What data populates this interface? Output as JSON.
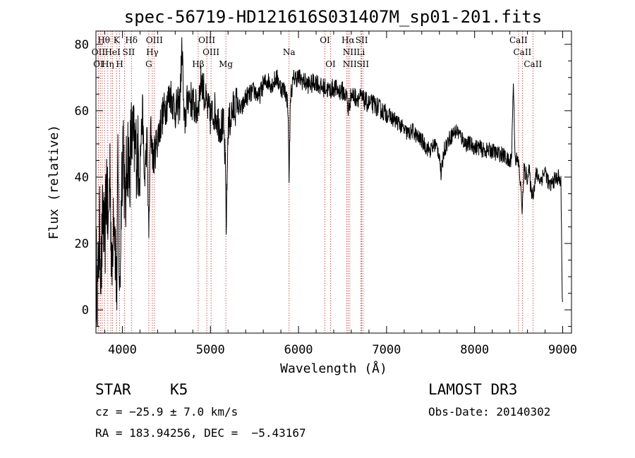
{
  "chart_data": {
    "type": "line",
    "title": "spec-56719-HD121616S031407M_sp01-201.fits",
    "xlabel": "Wavelength (Å)",
    "ylabel": "Flux (relative)",
    "xlim": [
      3700,
      9100
    ],
    "ylim": [
      -7,
      84
    ],
    "xticks": [
      4000,
      5000,
      6000,
      7000,
      8000,
      9000
    ],
    "yticks": [
      0,
      20,
      40,
      60,
      80
    ],
    "grid": false,
    "line_color": "#000000",
    "marker_color": "#c03030",
    "anchors": [
      [
        3700,
        15
      ],
      [
        3720,
        5
      ],
      [
        3740,
        25
      ],
      [
        3760,
        12
      ],
      [
        3780,
        30
      ],
      [
        3800,
        18
      ],
      [
        3820,
        40
      ],
      [
        3840,
        22
      ],
      [
        3860,
        45
      ],
      [
        3880,
        8
      ],
      [
        3900,
        35
      ],
      [
        3920,
        20
      ],
      [
        3935,
        4
      ],
      [
        3950,
        42
      ],
      [
        3970,
        2
      ],
      [
        3990,
        38
      ],
      [
        4010,
        55
      ],
      [
        4030,
        28
      ],
      [
        4060,
        50
      ],
      [
        4080,
        40
      ],
      [
        4100,
        52
      ],
      [
        4150,
        48
      ],
      [
        4200,
        45
      ],
      [
        4230,
        60
      ],
      [
        4250,
        38
      ],
      [
        4280,
        52
      ],
      [
        4300,
        22
      ],
      [
        4320,
        55
      ],
      [
        4350,
        45
      ],
      [
        4400,
        52
      ],
      [
        4450,
        58
      ],
      [
        4500,
        62
      ],
      [
        4550,
        65
      ],
      [
        4600,
        60
      ],
      [
        4650,
        62
      ],
      [
        4680,
        80
      ],
      [
        4700,
        55
      ],
      [
        4750,
        65
      ],
      [
        4800,
        62
      ],
      [
        4850,
        60
      ],
      [
        4900,
        70
      ],
      [
        4950,
        62
      ],
      [
        5000,
        58
      ],
      [
        5050,
        60
      ],
      [
        5100,
        56
      ],
      [
        5150,
        55
      ],
      [
        5170,
        42
      ],
      [
        5180,
        25
      ],
      [
        5200,
        55
      ],
      [
        5250,
        60
      ],
      [
        5300,
        62
      ],
      [
        5350,
        60
      ],
      [
        5400,
        64
      ],
      [
        5450,
        65
      ],
      [
        5500,
        66
      ],
      [
        5550,
        64
      ],
      [
        5600,
        68
      ],
      [
        5650,
        69
      ],
      [
        5700,
        68
      ],
      [
        5750,
        70
      ],
      [
        5800,
        67
      ],
      [
        5850,
        66
      ],
      [
        5880,
        62
      ],
      [
        5893,
        40
      ],
      [
        5910,
        65
      ],
      [
        5950,
        70
      ],
      [
        6000,
        70
      ],
      [
        6050,
        69
      ],
      [
        6100,
        68
      ],
      [
        6150,
        68
      ],
      [
        6200,
        69
      ],
      [
        6250,
        67
      ],
      [
        6300,
        67
      ],
      [
        6350,
        66
      ],
      [
        6400,
        67
      ],
      [
        6450,
        66
      ],
      [
        6500,
        66
      ],
      [
        6550,
        64
      ],
      [
        6563,
        60
      ],
      [
        6600,
        65
      ],
      [
        6650,
        64
      ],
      [
        6700,
        64
      ],
      [
        6750,
        63
      ],
      [
        6800,
        62
      ],
      [
        6850,
        62
      ],
      [
        6900,
        61
      ],
      [
        6950,
        60
      ],
      [
        7000,
        59
      ],
      [
        7050,
        58
      ],
      [
        7100,
        57
      ],
      [
        7150,
        56
      ],
      [
        7200,
        54
      ],
      [
        7250,
        53
      ],
      [
        7300,
        54
      ],
      [
        7350,
        52
      ],
      [
        7400,
        51
      ],
      [
        7450,
        49
      ],
      [
        7500,
        48
      ],
      [
        7550,
        50
      ],
      [
        7600,
        47
      ],
      [
        7620,
        40
      ],
      [
        7650,
        48
      ],
      [
        7700,
        51
      ],
      [
        7750,
        53
      ],
      [
        7800,
        54
      ],
      [
        7850,
        52
      ],
      [
        7900,
        50
      ],
      [
        7950,
        50
      ],
      [
        8000,
        49
      ],
      [
        8050,
        49
      ],
      [
        8100,
        48
      ],
      [
        8150,
        48
      ],
      [
        8200,
        48
      ],
      [
        8250,
        47
      ],
      [
        8300,
        47
      ],
      [
        8350,
        46
      ],
      [
        8400,
        44
      ],
      [
        8420,
        47
      ],
      [
        8440,
        69
      ],
      [
        8460,
        46
      ],
      [
        8500,
        44
      ],
      [
        8520,
        38
      ],
      [
        8542,
        30
      ],
      [
        8560,
        42
      ],
      [
        8600,
        40
      ],
      [
        8620,
        42
      ],
      [
        8640,
        36
      ],
      [
        8662,
        35
      ],
      [
        8700,
        41
      ],
      [
        8750,
        39
      ],
      [
        8800,
        42
      ],
      [
        8850,
        37
      ],
      [
        8900,
        39
      ],
      [
        8950,
        40
      ],
      [
        8980,
        38
      ],
      [
        8995,
        5
      ],
      [
        9000,
        -1
      ]
    ],
    "line_markers": [
      3727,
      3750,
      3771,
      3798,
      3835,
      3869,
      3889,
      3934,
      3969,
      4026,
      4102,
      4300,
      4340,
      4363,
      4861,
      4959,
      5007,
      5175,
      5893,
      6300,
      6364,
      6548,
      6563,
      6583,
      6708,
      6717,
      6731,
      8498,
      8542,
      8662
    ],
    "line_labels": [
      {
        "text": "Hθ",
        "wl": 3790,
        "row": 1
      },
      {
        "text": "K",
        "wl": 3934,
        "row": 1
      },
      {
        "text": "Hδ",
        "wl": 4102,
        "row": 1
      },
      {
        "text": "OIII",
        "wl": 4363,
        "row": 1
      },
      {
        "text": "OIII",
        "wl": 4959,
        "row": 1
      },
      {
        "text": "OI",
        "wl": 6300,
        "row": 1
      },
      {
        "text": "Hα",
        "wl": 6563,
        "row": 1
      },
      {
        "text": "SII",
        "wl": 6717,
        "row": 1
      },
      {
        "text": "CaII",
        "wl": 8498,
        "row": 1
      },
      {
        "text": "OII",
        "wl": 3727,
        "row": 2
      },
      {
        "text": "HeI",
        "wl": 3889,
        "row": 2
      },
      {
        "text": "SII",
        "wl": 4072,
        "row": 2
      },
      {
        "text": "Hγ",
        "wl": 4340,
        "row": 2
      },
      {
        "text": "OIII",
        "wl": 5007,
        "row": 2
      },
      {
        "text": "Na",
        "wl": 5893,
        "row": 2
      },
      {
        "text": "NII",
        "wl": 6583,
        "row": 2
      },
      {
        "text": "Li",
        "wl": 6708,
        "row": 2
      },
      {
        "text": "CaII",
        "wl": 8542,
        "row": 2
      },
      {
        "text": "OI",
        "wl": 3727,
        "row": 3
      },
      {
        "text": "Hη",
        "wl": 3835,
        "row": 3
      },
      {
        "text": "H",
        "wl": 3969,
        "row": 3
      },
      {
        "text": "G",
        "wl": 4300,
        "row": 3
      },
      {
        "text": "Hβ",
        "wl": 4861,
        "row": 3
      },
      {
        "text": "Mg",
        "wl": 5175,
        "row": 3
      },
      {
        "text": "OI",
        "wl": 6364,
        "row": 3
      },
      {
        "text": "NII",
        "wl": 6583,
        "row": 3
      },
      {
        "text": "SII",
        "wl": 6731,
        "row": 3
      },
      {
        "text": "CaII",
        "wl": 8662,
        "row": 3
      }
    ]
  },
  "info": {
    "object_class": "STAR",
    "subclass": "K5",
    "survey": "LAMOST DR3",
    "cz": "cz = −25.9 ± 7.0 km/s",
    "obs_date": "Obs-Date: 20140302",
    "coords": "RA = 183.94256, DEC =  −5.43167"
  }
}
